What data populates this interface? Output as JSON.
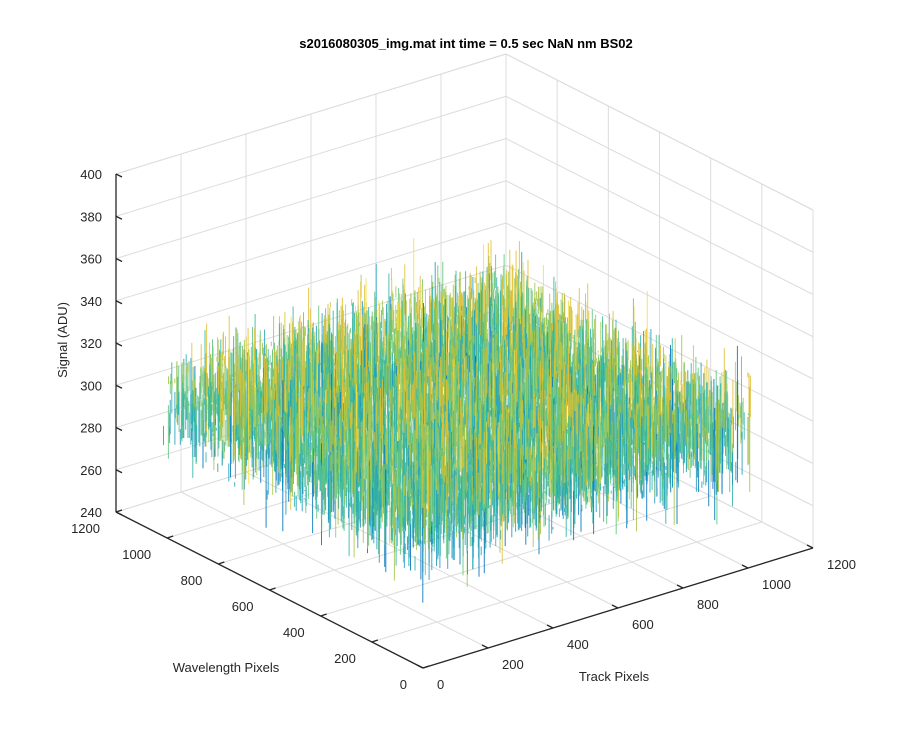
{
  "figure": {
    "background": "#ffffff"
  },
  "chart_data": {
    "type": "surface",
    "title": "s2016080305_img.mat int time = 0.5 sec  NaN nm BS02",
    "xlabel": "Track Pixels",
    "ylabel": "Wavelength Pixels",
    "zlabel": "Signal (ADU)",
    "xlim": [
      0,
      1200
    ],
    "ylim": [
      0,
      1200
    ],
    "zlim": [
      240,
      400
    ],
    "xticks": [
      "0",
      "200",
      "400",
      "600",
      "800",
      "1000",
      "1200"
    ],
    "yticks": [
      "0",
      "200",
      "400",
      "600",
      "800",
      "1000",
      "1200"
    ],
    "zticks": [
      "240",
      "260",
      "280",
      "300",
      "320",
      "340",
      "360",
      "380",
      "400"
    ],
    "grid": true,
    "colormap": [
      "#0072bd",
      "#1f9dbe",
      "#2fb5a8",
      "#5fc47f",
      "#a8c64a",
      "#e0c033",
      "#f5e23a"
    ],
    "data_extent": {
      "x": [
        1,
        1024
      ],
      "y": [
        1,
        1024
      ]
    },
    "signal_mean": 305,
    "signal_spread": [
      265,
      350
    ],
    "signal_peak_range": [
      240,
      390
    ]
  }
}
